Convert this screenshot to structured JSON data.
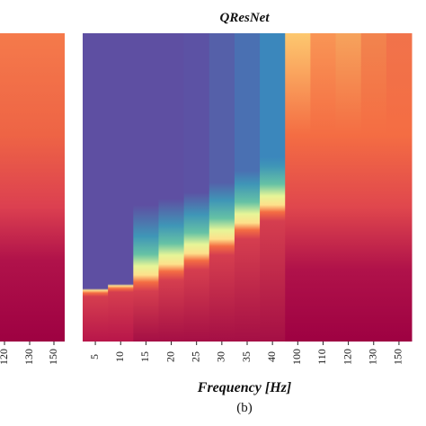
{
  "chart_data": {
    "type": "heatmap",
    "title": "QResNet",
    "categories": [
      "5",
      "10",
      "15",
      "20",
      "25",
      "30",
      "35",
      "40",
      "100",
      "110",
      "120",
      "130",
      "150"
    ],
    "left_panel_categories": [
      "120",
      "130",
      "150"
    ],
    "xlabel": "Frequency [Hz]",
    "caption": "(b)"
  }
}
